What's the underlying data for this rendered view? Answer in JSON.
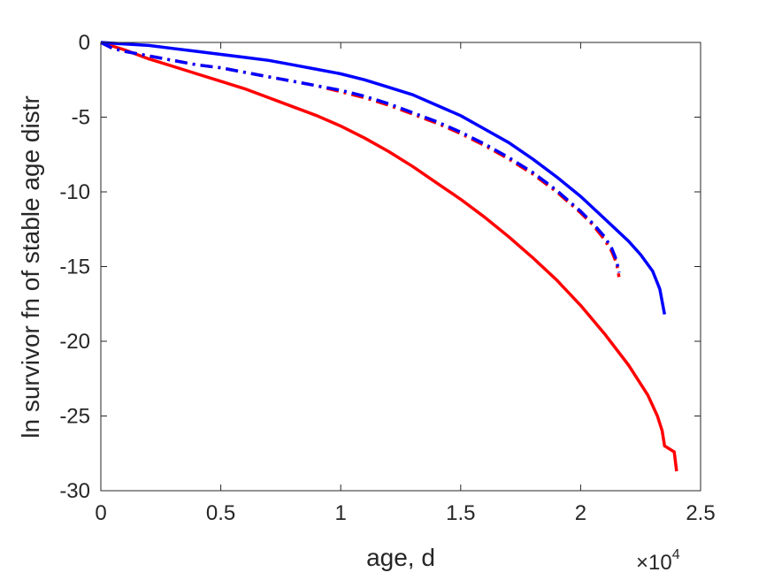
{
  "chart_data": {
    "type": "line",
    "title": "",
    "xlabel": "age, d",
    "ylabel": "ln survivor fn of stable age distr",
    "x_exponent": {
      "base": "×10",
      "power": "4"
    },
    "xlim": [
      0,
      25000
    ],
    "ylim": [
      -30,
      0
    ],
    "xticks": [
      0,
      5000,
      10000,
      15000,
      20000,
      25000
    ],
    "xtick_labels": [
      "0",
      "0.5",
      "1",
      "1.5",
      "2",
      "2.5"
    ],
    "yticks": [
      0,
      -5,
      -10,
      -15,
      -20,
      -25,
      -30
    ],
    "ytick_labels": [
      "0",
      "-5",
      "-10",
      "-15",
      "-20",
      "-25",
      "-30"
    ],
    "grid": false,
    "legend": "none",
    "series": [
      {
        "color": "#ff0000",
        "style": "solid",
        "x": [
          0,
          1000,
          2000,
          3000,
          4000,
          5000,
          6000,
          7000,
          8000,
          9000,
          10000,
          11000,
          12000,
          13000,
          14000,
          15000,
          16000,
          17000,
          18000,
          19000,
          20000,
          21000,
          22000,
          22800,
          23200,
          23400,
          23500,
          23900,
          24000
        ],
        "y": [
          0,
          -0.5,
          -1.1,
          -1.6,
          -2.1,
          -2.6,
          -3.1,
          -3.7,
          -4.3,
          -4.9,
          -5.6,
          -6.4,
          -7.3,
          -8.3,
          -9.4,
          -10.5,
          -11.7,
          -13.0,
          -14.4,
          -15.9,
          -17.6,
          -19.5,
          -21.6,
          -23.6,
          -25.0,
          -26.0,
          -27.0,
          -27.4,
          -28.7
        ]
      },
      {
        "color": "#ff0000",
        "style": "dashdot",
        "x": [
          0,
          500,
          1000,
          2000,
          3000,
          4000,
          5000,
          6000,
          7000,
          8000,
          9000,
          10000,
          11000,
          12000,
          13000,
          14000,
          15000,
          16000,
          17000,
          18000,
          19000,
          20000,
          20500,
          21000,
          21300,
          21500,
          21600
        ],
        "y": [
          0,
          -0.4,
          -0.6,
          -0.9,
          -1.2,
          -1.5,
          -1.7,
          -2.0,
          -2.3,
          -2.6,
          -2.9,
          -3.3,
          -3.7,
          -4.2,
          -4.8,
          -5.4,
          -6.1,
          -6.9,
          -7.8,
          -8.8,
          -10.0,
          -11.4,
          -12.2,
          -13.2,
          -14.0,
          -14.8,
          -15.7
        ]
      },
      {
        "color": "#0000ff",
        "style": "dashdot",
        "x": [
          0,
          500,
          1000,
          2000,
          3000,
          4000,
          5000,
          6000,
          7000,
          8000,
          9000,
          10000,
          11000,
          12000,
          13000,
          14000,
          15000,
          16000,
          17000,
          18000,
          19000,
          20000,
          20500,
          21000,
          21300,
          21500,
          21600
        ],
        "y": [
          0,
          -0.4,
          -0.6,
          -0.9,
          -1.2,
          -1.5,
          -1.7,
          -2.0,
          -2.3,
          -2.6,
          -2.9,
          -3.2,
          -3.6,
          -4.1,
          -4.7,
          -5.3,
          -6.0,
          -6.8,
          -7.7,
          -8.7,
          -9.9,
          -11.3,
          -12.1,
          -13.0,
          -13.8,
          -14.6,
          -15.4
        ]
      },
      {
        "color": "#0000ff",
        "style": "solid",
        "x": [
          0,
          1000,
          2000,
          3000,
          4000,
          5000,
          6000,
          7000,
          8000,
          9000,
          10000,
          11000,
          12000,
          13000,
          14000,
          15000,
          16000,
          17000,
          18000,
          19000,
          20000,
          21000,
          22000,
          22500,
          23000,
          23300,
          23500
        ],
        "y": [
          0,
          -0.1,
          -0.2,
          -0.4,
          -0.6,
          -0.8,
          -1.0,
          -1.2,
          -1.5,
          -1.8,
          -2.1,
          -2.5,
          -3.0,
          -3.5,
          -4.2,
          -4.9,
          -5.8,
          -6.7,
          -7.8,
          -9.0,
          -10.3,
          -11.8,
          -13.3,
          -14.2,
          -15.3,
          -16.5,
          -18.2
        ]
      }
    ]
  }
}
